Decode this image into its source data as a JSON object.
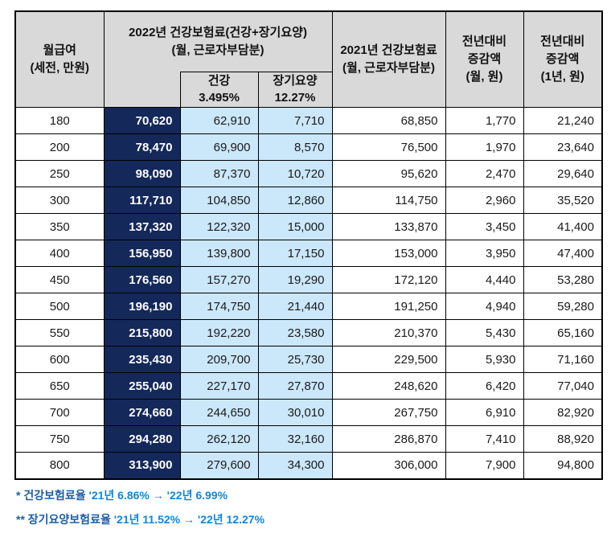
{
  "table": {
    "headers": {
      "salary": "월급여\n(세전, 만원)",
      "group_2022": "2022년 건강보험료(건강+장기요양)\n(월, 근로자부담분)",
      "sub_health": "건강\n3.495%",
      "sub_longterm": "장기요양\n12.27%",
      "col_2021": "2021년 건강보험료\n(월, 근로자부담분)",
      "diff_month": "전년대비\n증감액\n(월, 원)",
      "diff_year": "전년대비\n증감액\n(1년, 원)"
    },
    "rows": [
      {
        "salary": "180",
        "total_2022": "70,620",
        "health": "62,910",
        "longterm": "7,710",
        "total_2021": "68,850",
        "diff_month": "1,770",
        "diff_year": "21,240"
      },
      {
        "salary": "200",
        "total_2022": "78,470",
        "health": "69,900",
        "longterm": "8,570",
        "total_2021": "76,500",
        "diff_month": "1,970",
        "diff_year": "23,640"
      },
      {
        "salary": "250",
        "total_2022": "98,090",
        "health": "87,370",
        "longterm": "10,720",
        "total_2021": "95,620",
        "diff_month": "2,470",
        "diff_year": "29,640"
      },
      {
        "salary": "300",
        "total_2022": "117,710",
        "health": "104,850",
        "longterm": "12,860",
        "total_2021": "114,750",
        "diff_month": "2,960",
        "diff_year": "35,520"
      },
      {
        "salary": "350",
        "total_2022": "137,320",
        "health": "122,320",
        "longterm": "15,000",
        "total_2021": "133,870",
        "diff_month": "3,450",
        "diff_year": "41,400"
      },
      {
        "salary": "400",
        "total_2022": "156,950",
        "health": "139,800",
        "longterm": "17,150",
        "total_2021": "153,000",
        "diff_month": "3,950",
        "diff_year": "47,400"
      },
      {
        "salary": "450",
        "total_2022": "176,560",
        "health": "157,270",
        "longterm": "19,290",
        "total_2021": "172,120",
        "diff_month": "4,440",
        "diff_year": "53,280"
      },
      {
        "salary": "500",
        "total_2022": "196,190",
        "health": "174,750",
        "longterm": "21,440",
        "total_2021": "191,250",
        "diff_month": "4,940",
        "diff_year": "59,280"
      },
      {
        "salary": "550",
        "total_2022": "215,800",
        "health": "192,220",
        "longterm": "23,580",
        "total_2021": "210,370",
        "diff_month": "5,430",
        "diff_year": "65,160"
      },
      {
        "salary": "600",
        "total_2022": "235,430",
        "health": "209,700",
        "longterm": "25,730",
        "total_2021": "229,500",
        "diff_month": "5,930",
        "diff_year": "71,160"
      },
      {
        "salary": "650",
        "total_2022": "255,040",
        "health": "227,170",
        "longterm": "27,870",
        "total_2021": "248,620",
        "diff_month": "6,420",
        "diff_year": "77,040"
      },
      {
        "salary": "700",
        "total_2022": "274,660",
        "health": "244,650",
        "longterm": "30,010",
        "total_2021": "267,750",
        "diff_month": "6,910",
        "diff_year": "82,920"
      },
      {
        "salary": "750",
        "total_2022": "294,280",
        "health": "262,120",
        "longterm": "32,160",
        "total_2021": "286,870",
        "diff_month": "7,410",
        "diff_year": "88,920"
      },
      {
        "salary": "800",
        "total_2022": "313,900",
        "health": "279,600",
        "longterm": "34,300",
        "total_2021": "306,000",
        "diff_month": "7,900",
        "diff_year": "94,800"
      }
    ]
  },
  "footnotes": [
    {
      "label": "* 건강보험료율",
      "value": "'21년 6.86% → '22년 6.99%"
    },
    {
      "label": "** 장기요양보험료율",
      "value": "'21년 11.52% → '22년 12.27%"
    }
  ],
  "colors": {
    "header_gray": "#d9d9d9",
    "total_column_navy": "#14285a",
    "detail_column_light_blue": "#cbe7fa",
    "footnote_label_blue": "#1b5ea8",
    "footnote_value_blue": "#0e87db",
    "border_black": "#000000"
  }
}
